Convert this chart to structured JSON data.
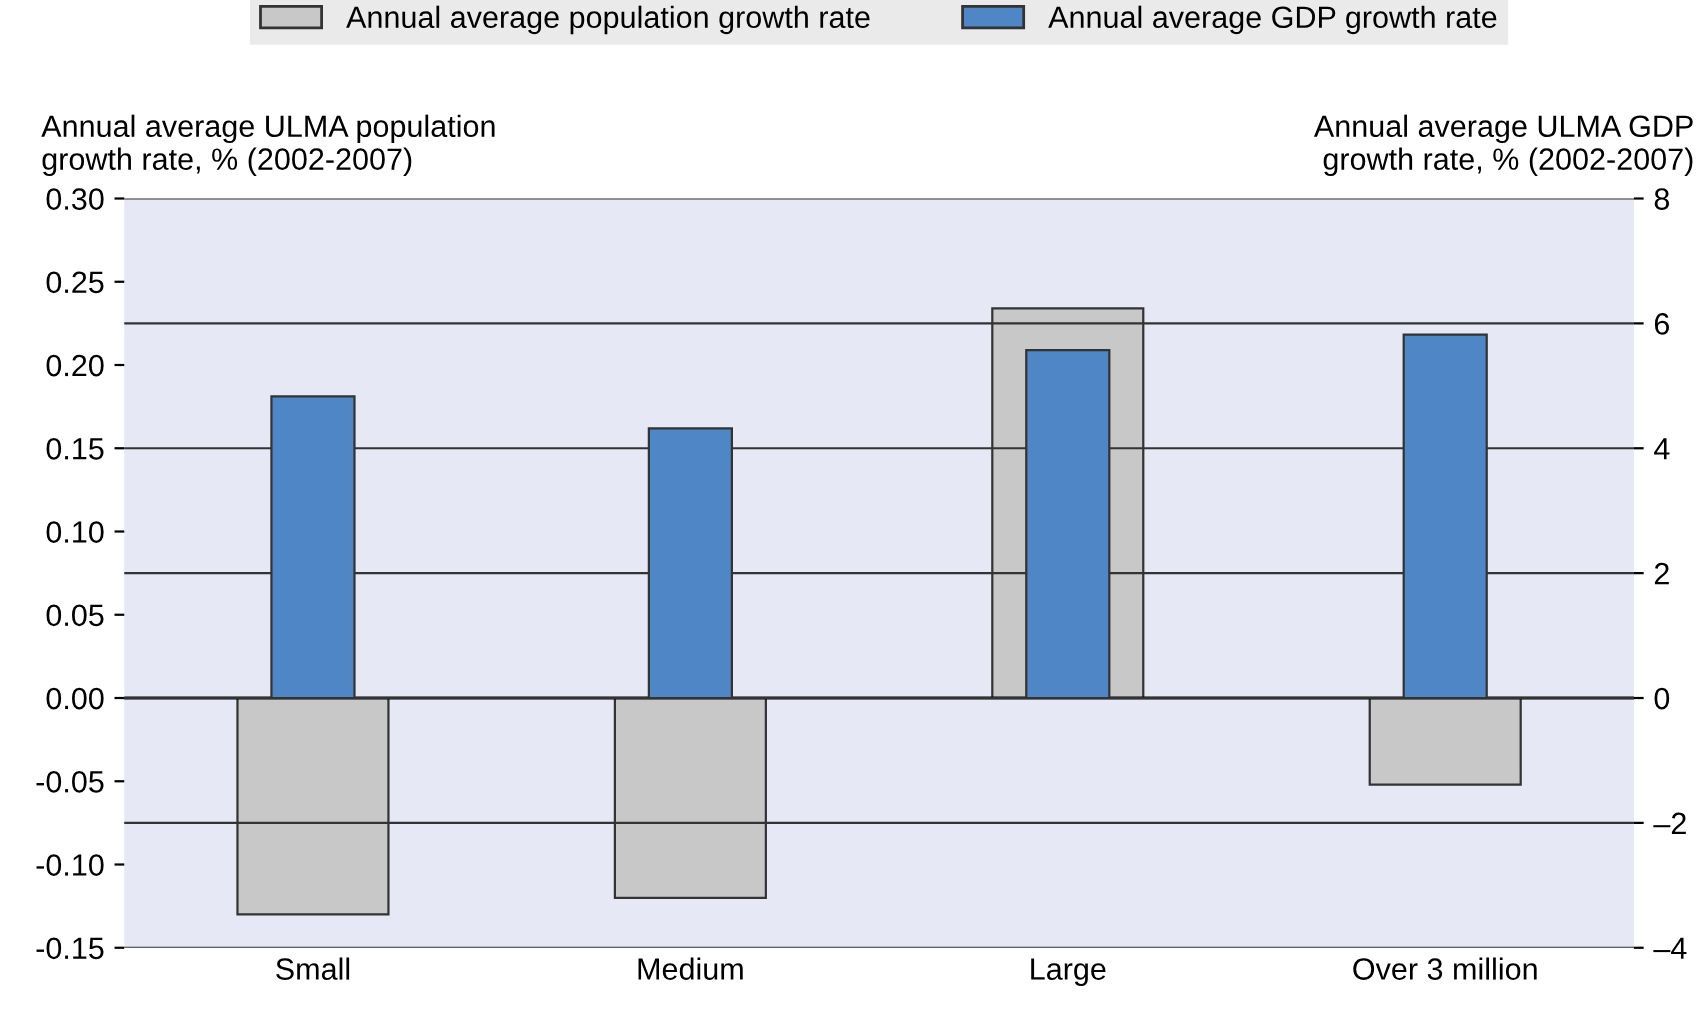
{
  "chart_data": {
    "type": "bar",
    "categories": [
      "Small",
      "Medium",
      "Large",
      "Over 3 million"
    ],
    "series": [
      {
        "name": "Annual average population growth rate",
        "color": "#c8c8c8",
        "values": [
          -0.13,
          -0.12,
          0.234,
          -0.052
        ]
      },
      {
        "name": "Annual average GDP growth rate",
        "color": "#4f86c6",
        "values": [
          4.83,
          4.32,
          5.57,
          5.82
        ],
        "axis": "y2"
      }
    ],
    "ylabel": "Annual average ULMA population growth rate, % (2002-2007)",
    "y2label": "Annual average ULMA GDP growth rate, % (2002-2007)",
    "ylim": [
      -0.15,
      0.3
    ],
    "yticks": [
      {
        "value": -0.15,
        "label": "-0.15"
      },
      {
        "value": -0.1,
        "label": "-0.10"
      },
      {
        "value": -0.05,
        "label": "-0.05"
      },
      {
        "value": 0,
        "label": "0.00"
      },
      {
        "value": 0.05,
        "label": "0.05"
      },
      {
        "value": 0.1,
        "label": "0.10"
      },
      {
        "value": 0.15,
        "label": "0.15"
      },
      {
        "value": 0.2,
        "label": "0.20"
      },
      {
        "value": 0.25,
        "label": "0.25"
      },
      {
        "value": 0.3,
        "label": "0.30"
      }
    ],
    "y2lim": [
      -4,
      8
    ],
    "y2ticks": [
      {
        "value": -4,
        "label": "–4"
      },
      {
        "value": -2,
        "label": "–2"
      },
      0,
      2,
      4,
      6,
      8
    ],
    "grid": "y2",
    "legend": "top"
  }
}
